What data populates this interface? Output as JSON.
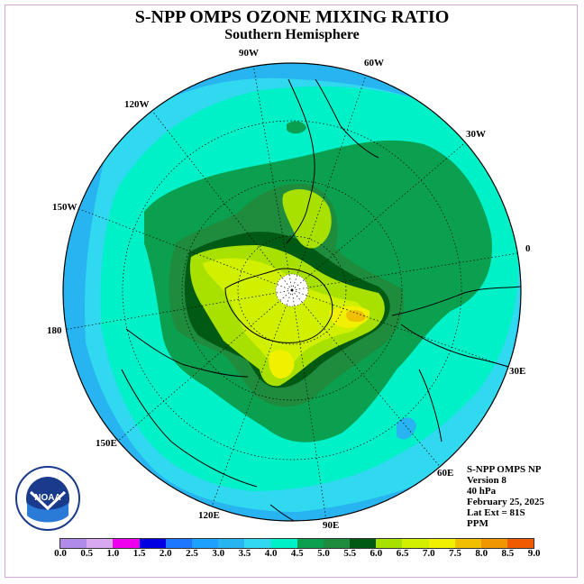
{
  "title": "S-NPP OMPS OZONE MIXING RATIO",
  "subtitle": "Southern Hemisphere",
  "longitude_labels": [
    "90W",
    "60W",
    "30W",
    "0",
    "30E",
    "60E",
    "90E",
    "120E",
    "150E",
    "180",
    "150W",
    "120W"
  ],
  "info": {
    "instrument": "S-NPP OMPS NP",
    "version": "Version 8",
    "pressure": "40 hPa",
    "date": "February 25, 2025",
    "lat_ext": "Lat Ext = 81S",
    "units": "PPM"
  },
  "logo": {
    "text": "NOAA",
    "ring_text": "NATIONAL OCEANIC AND ATMOSPHERIC ADMINISTRATION · U.S. DEPARTMENT OF COMMERCE"
  },
  "colorbar": {
    "ticks": [
      "0.0",
      "0.5",
      "1.0",
      "1.5",
      "2.0",
      "2.5",
      "3.0",
      "3.5",
      "4.0",
      "4.5",
      "5.0",
      "5.5",
      "6.0",
      "6.5",
      "7.0",
      "7.5",
      "8.0",
      "8.5",
      "9.0"
    ],
    "colors": [
      "#b08ce8",
      "#d8a8f0",
      "#ee00ee",
      "#0000e0",
      "#1e78ff",
      "#1ea0ff",
      "#28b4f0",
      "#30d8f0",
      "#00f0c8",
      "#0aa050",
      "#1e8c3c",
      "#005a14",
      "#a8e000",
      "#d0f000",
      "#f0f000",
      "#f0c000",
      "#f09600",
      "#f05a00",
      "#e80000",
      "#8c5a32"
    ]
  }
}
